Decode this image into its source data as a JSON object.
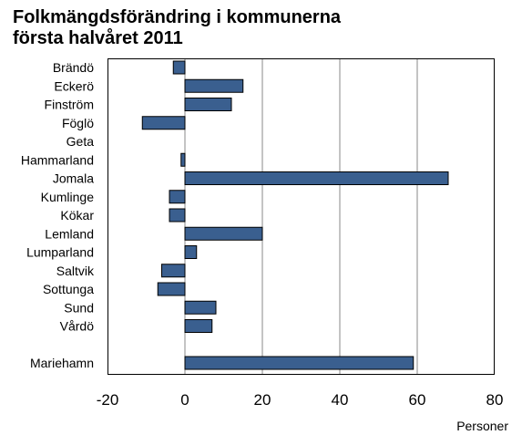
{
  "header": {
    "title_line1": "Folkmängdsförändring i kommunerna",
    "title_line2": "första halvåret 2011"
  },
  "chart_data": {
    "type": "bar",
    "orientation": "horizontal",
    "categories": [
      "Brändö",
      "Eckerö",
      "Finström",
      "Föglö",
      "Geta",
      "Hammarland",
      "Jomala",
      "Kumlinge",
      "Kökar",
      "Lemland",
      "Lumparland",
      "Saltvik",
      "Sottunga",
      "Sund",
      "Vårdö",
      "",
      "Mariehamn"
    ],
    "values": [
      -3,
      15,
      12,
      -11,
      0,
      -1,
      68,
      -4,
      -4,
      20,
      3,
      -6,
      -7,
      8,
      7,
      null,
      59
    ],
    "xlim": [
      -20,
      80
    ],
    "xticks": [
      -20,
      0,
      20,
      40,
      60,
      80
    ],
    "xlabel": "Personer",
    "grid": true,
    "bar_color": "#3a5f8f"
  }
}
